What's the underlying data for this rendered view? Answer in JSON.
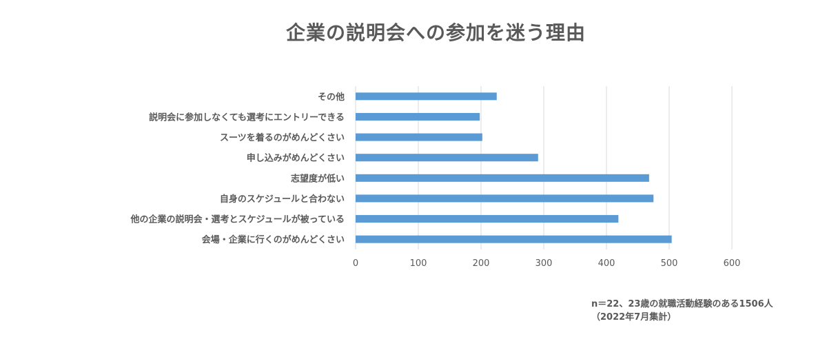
{
  "chart_data": {
    "type": "bar",
    "orientation": "horizontal",
    "title": "企業の説明会への参加を迷う理由",
    "categories": [
      "その他",
      "説明会に参加しなくても選考にエントリーできる",
      "スーツを着るのがめんどくさい",
      "申し込みがめんどくさい",
      "志望度が低い",
      "自身のスケジュールと合わない",
      "他の企業の説明会・選考とスケジュールが被っている",
      "会場・企業に行くのがめんどくさい"
    ],
    "values": [
      225,
      198,
      202,
      291,
      468,
      475,
      419,
      504
    ],
    "xlim": [
      0,
      600
    ],
    "xticks": [
      0,
      100,
      200,
      300,
      400,
      500,
      600
    ],
    "grid": "vertical",
    "bar_color": "#5b9bd5",
    "notes": [
      "n＝22、23歳の就職活動経験のある1506人",
      "（2022年7月集計）"
    ]
  }
}
